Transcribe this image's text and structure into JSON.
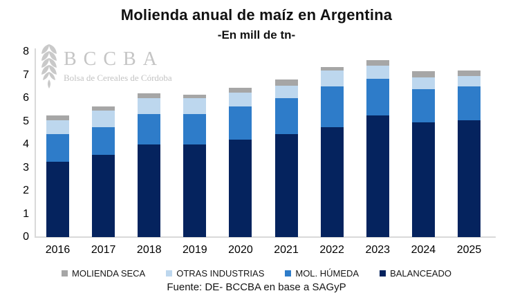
{
  "chart": {
    "title": "Molienda anual de maíz en Argentina",
    "subtitle": "-En mill de tn-",
    "source": "Fuente: DE- BCCBA en base a SAGyP"
  },
  "logo": {
    "acronym": "BCCBA",
    "name": "Bolsa de Cereales de Córdoba"
  },
  "chart_data": {
    "type": "bar",
    "stacked": true,
    "title": "Molienda anual de maíz en Argentina",
    "subtitle": "-En mill de tn-",
    "xlabel": "",
    "ylabel": "mill de tn",
    "ylim": [
      0,
      8
    ],
    "y_ticks": [
      8,
      7,
      6,
      5,
      4,
      3,
      2,
      1,
      0
    ],
    "grid": false,
    "legend_position": "bottom",
    "categories": [
      "2016",
      "2017",
      "2018",
      "2019",
      "2020",
      "2021",
      "2022",
      "2023",
      "2024",
      "2025"
    ],
    "series": [
      {
        "name": "BALANCEADO",
        "color": "#05235E",
        "values": [
          3.25,
          3.55,
          4.0,
          4.0,
          4.2,
          4.45,
          4.75,
          5.25,
          4.95,
          5.05
        ]
      },
      {
        "name": "MOL. HÚMEDA",
        "color": "#2E7CC9",
        "values": [
          1.2,
          1.2,
          1.3,
          1.3,
          1.45,
          1.55,
          1.75,
          1.6,
          1.45,
          1.45
        ]
      },
      {
        "name": "OTRAS INDUSTRIAS",
        "color": "#BDD7EE",
        "values": [
          0.6,
          0.7,
          0.7,
          0.7,
          0.6,
          0.55,
          0.7,
          0.55,
          0.5,
          0.45
        ]
      },
      {
        "name": "MOLIENDA SECA",
        "color": "#A6A6A6",
        "values": [
          0.2,
          0.2,
          0.2,
          0.15,
          0.2,
          0.25,
          0.15,
          0.25,
          0.25,
          0.25
        ]
      }
    ],
    "totals": [
      5.25,
      5.65,
      6.2,
      6.15,
      6.45,
      6.8,
      7.35,
      7.65,
      7.15,
      7.2
    ],
    "legend_order": [
      "MOLIENDA SECA",
      "OTRAS INDUSTRIAS",
      "MOL. HÚMEDA",
      "BALANCEADO"
    ]
  }
}
